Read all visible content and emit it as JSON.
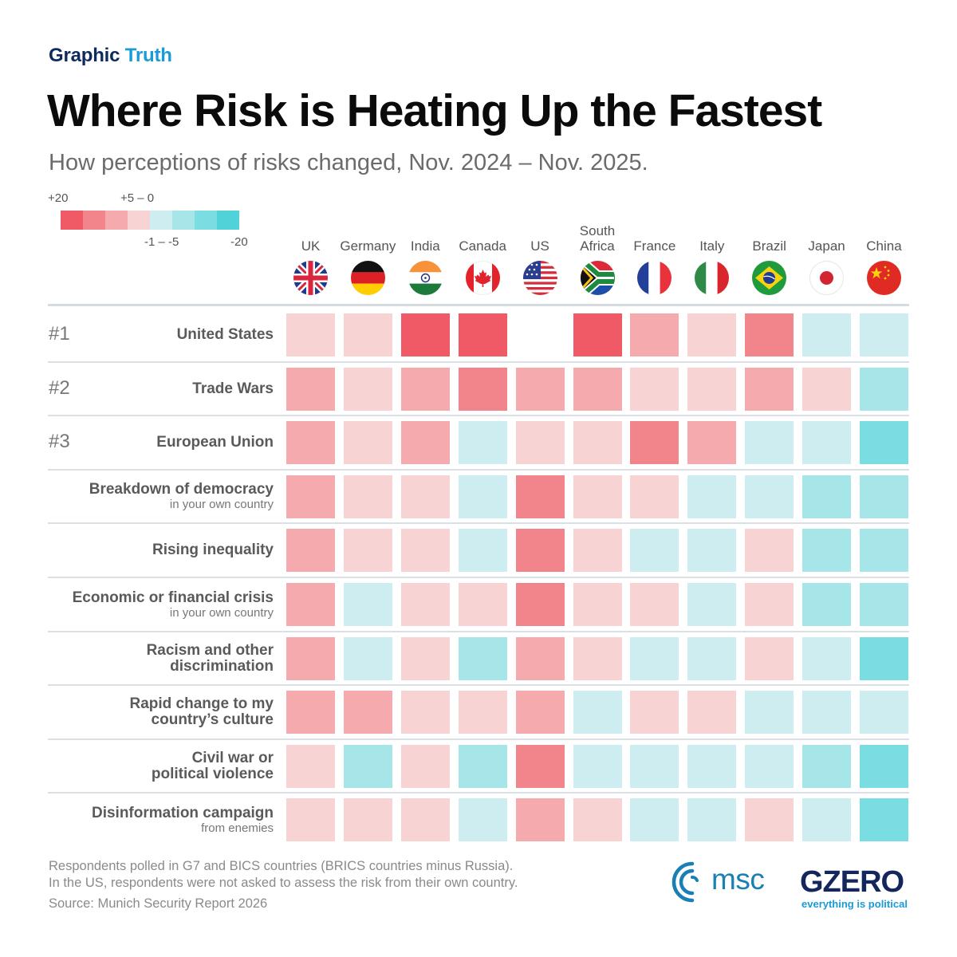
{
  "header": {
    "kicker_part1": "Graphic",
    "kicker_part2": "Truth",
    "title": "Where Risk is Heating Up the Fastest",
    "subtitle": "How perceptions of risks changed, Nov. 2024 – Nov. 2025."
  },
  "legend": {
    "label_max": "+20",
    "label_low_pos": "+5 – 0",
    "label_low_neg": "-1 – -5",
    "label_min": "-20",
    "colors": [
      "#F05A66",
      "#F2848C",
      "#F5AAAE",
      "#F7D3D3",
      "#CDEDF0",
      "#A6E5E8",
      "#7ADDE1",
      "#50D2D8"
    ]
  },
  "chart_data": {
    "type": "heatmap",
    "title": "Where Risk is Heating Up the Fastest",
    "subtitle": "How perceptions of risks changed, Nov. 2024 – Nov. 2025.",
    "scale": {
      "description": "Change in risk perception index; level 0 = +20 (largest increase) ... level 7 = -20 (largest decrease)",
      "levels": [
        {
          "level": 0,
          "label": "+20"
        },
        {
          "level": 1,
          "label": ""
        },
        {
          "level": 2,
          "label": ""
        },
        {
          "level": 3,
          "label": "+5 – 0"
        },
        {
          "level": 4,
          "label": "-1 – -5"
        },
        {
          "level": 5,
          "label": ""
        },
        {
          "level": 6,
          "label": ""
        },
        {
          "level": 7,
          "label": "-20"
        }
      ]
    },
    "columns": [
      {
        "name": "UK",
        "flag": "uk-flag"
      },
      {
        "name": "Germany",
        "flag": "germany-flag"
      },
      {
        "name": "India",
        "flag": "india-flag"
      },
      {
        "name": "Canada",
        "flag": "canada-flag"
      },
      {
        "name": "US",
        "flag": "us-flag"
      },
      {
        "name": "South Africa",
        "name_line1": "South",
        "name_line2": "Africa",
        "flag": "south-africa-flag"
      },
      {
        "name": "France",
        "flag": "france-flag"
      },
      {
        "name": "Italy",
        "flag": "italy-flag"
      },
      {
        "name": "Brazil",
        "flag": "brazil-flag"
      },
      {
        "name": "Japan",
        "flag": "japan-flag"
      },
      {
        "name": "China",
        "flag": "china-flag"
      }
    ],
    "rows": [
      {
        "rank": "#1",
        "label": "United States",
        "sublabel": "",
        "levels": [
          3,
          3,
          0,
          0,
          null,
          0,
          2,
          3,
          1,
          4,
          4
        ]
      },
      {
        "rank": "#2",
        "label": "Trade Wars",
        "sublabel": "",
        "levels": [
          2,
          3,
          2,
          1,
          2,
          2,
          3,
          3,
          2,
          3,
          5
        ]
      },
      {
        "rank": "#3",
        "label": "European Union",
        "sublabel": "",
        "levels": [
          2,
          3,
          2,
          4,
          3,
          3,
          1,
          2,
          4,
          4,
          6
        ]
      },
      {
        "rank": "",
        "label": "Breakdown of democracy",
        "sublabel": "in your own country",
        "levels": [
          2,
          3,
          3,
          4,
          1,
          3,
          3,
          4,
          4,
          5,
          5
        ]
      },
      {
        "rank": "",
        "label": "Rising inequality",
        "sublabel": "",
        "levels": [
          2,
          3,
          3,
          4,
          1,
          3,
          4,
          4,
          3,
          5,
          5
        ]
      },
      {
        "rank": "",
        "label": "Economic or financial crisis",
        "sublabel": "in your own country",
        "levels": [
          2,
          4,
          3,
          3,
          1,
          3,
          3,
          4,
          3,
          5,
          5
        ]
      },
      {
        "rank": "",
        "label": "Racism and other",
        "label2": "discrimination",
        "sublabel": "",
        "levels": [
          2,
          4,
          3,
          5,
          2,
          3,
          4,
          4,
          3,
          4,
          6
        ]
      },
      {
        "rank": "",
        "label": "Rapid change to my",
        "label2": "country’s culture",
        "sublabel": "",
        "levels": [
          2,
          2,
          3,
          3,
          2,
          4,
          3,
          3,
          4,
          4,
          4
        ]
      },
      {
        "rank": "",
        "label": "Civil war or",
        "label2": "political violence",
        "sublabel": "",
        "levels": [
          3,
          5,
          3,
          5,
          1,
          4,
          4,
          4,
          4,
          5,
          6
        ]
      },
      {
        "rank": "",
        "label": "Disinformation campaign",
        "sublabel": "from enemies",
        "levels": [
          3,
          3,
          3,
          4,
          2,
          3,
          4,
          4,
          3,
          4,
          6
        ]
      }
    ]
  },
  "footer": {
    "note_line1": "Respondents polled in G7 and BICS countries (BRICS countries minus Russia).",
    "note_line2": "In the US, respondents were not asked to assess the risk from their own country.",
    "source": "Source: Munich Security Report 2026",
    "msc_logo_text": "msc",
    "gzero_logo_text": "GZERO",
    "gzero_tagline": "everything is political"
  }
}
